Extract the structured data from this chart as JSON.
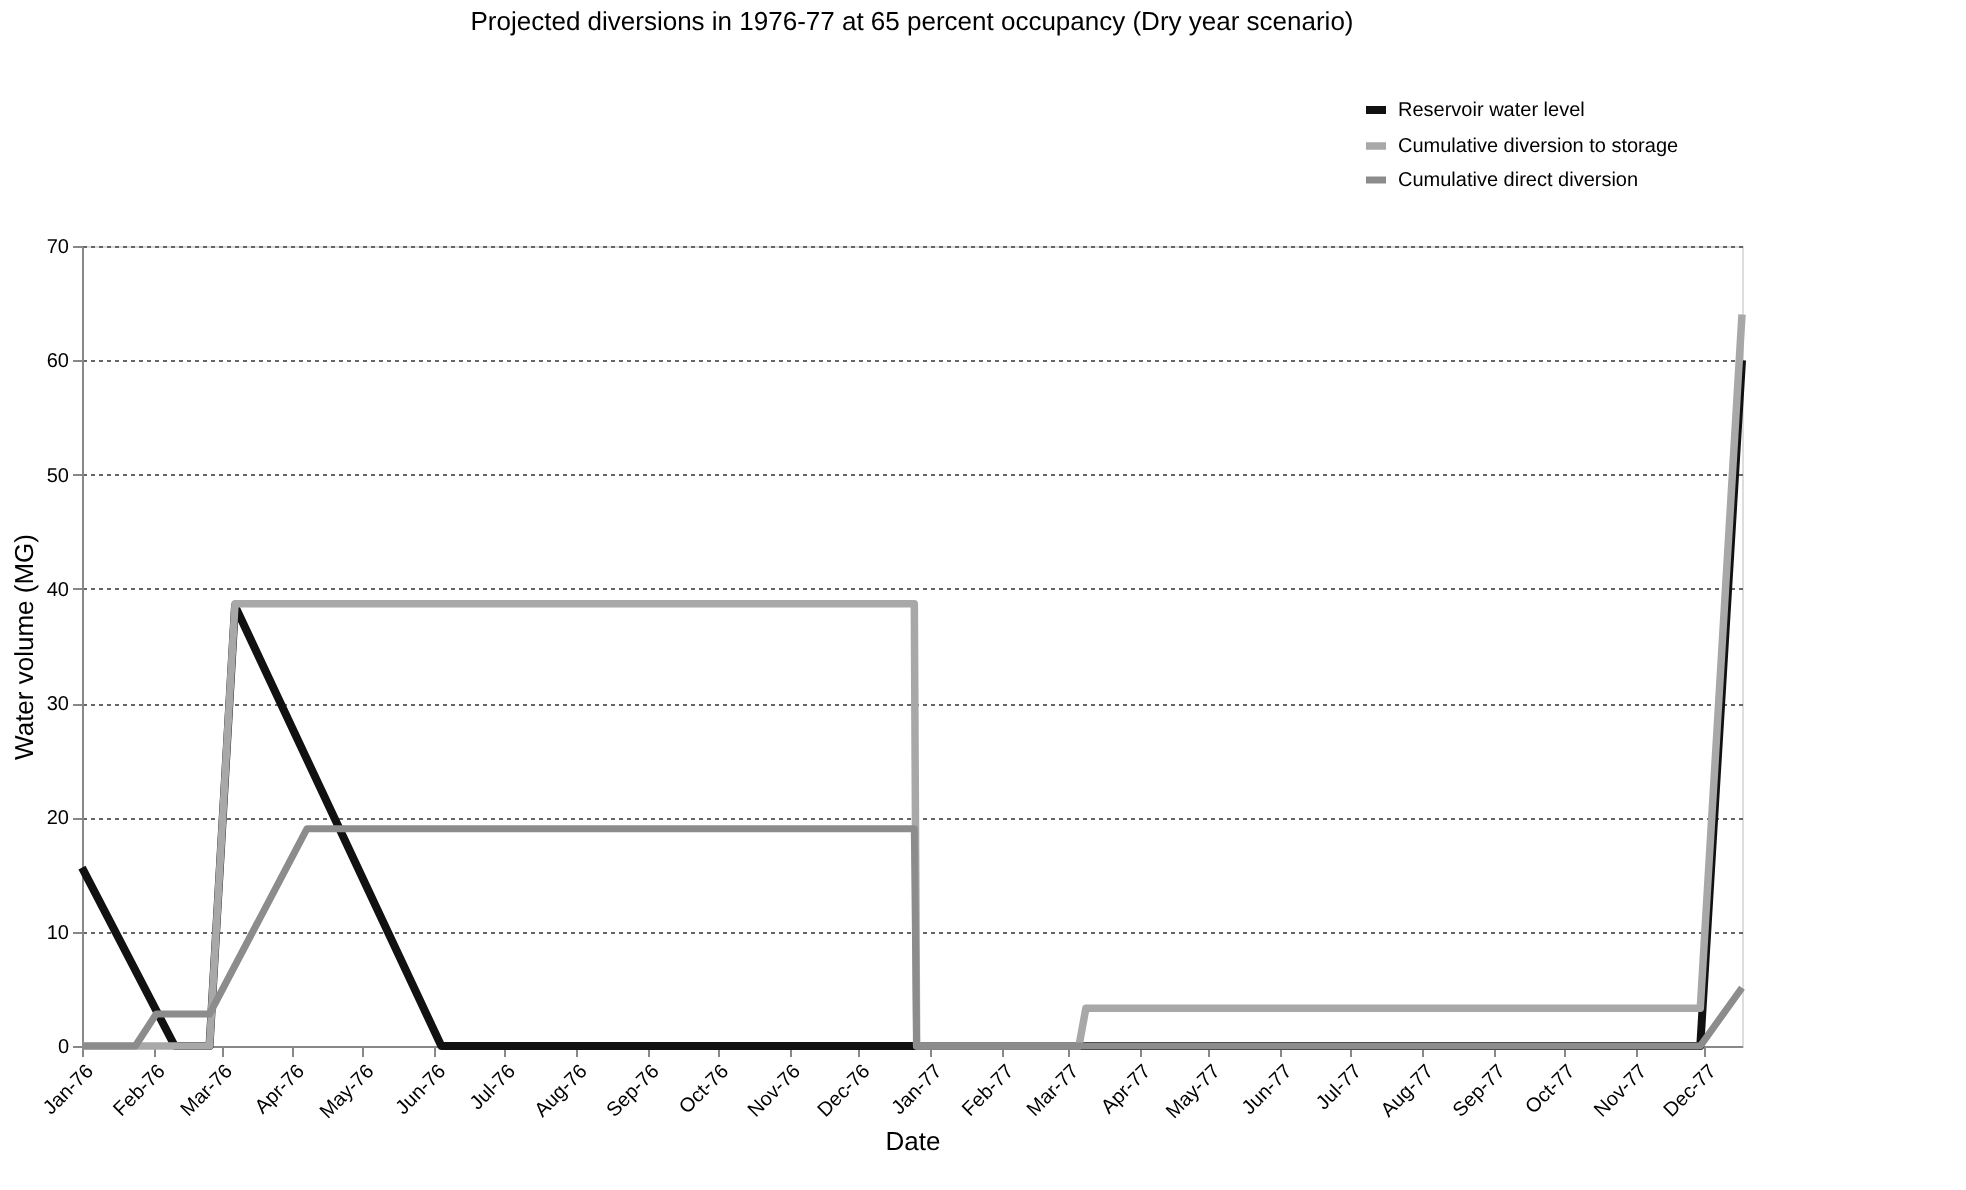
{
  "chart_data": {
    "type": "line",
    "title": "Projected diversions in 1976-77 at 65 percent occupancy (Dry year scenario)",
    "xlabel": "Date",
    "ylabel": "Water volume (MG)",
    "xlim": [
      "1976-01-01",
      "1977-12-17"
    ],
    "xticks": [
      {
        "value": "1976-01-01",
        "label": "Jan-76"
      },
      {
        "value": "1976-02-01",
        "label": "Feb-76"
      },
      {
        "value": "1976-03-01",
        "label": "Mar-76"
      },
      {
        "value": "1976-04-01",
        "label": "Apr-76"
      },
      {
        "value": "1976-05-01",
        "label": "May-76"
      },
      {
        "value": "1976-06-01",
        "label": "Jun-76"
      },
      {
        "value": "1976-07-01",
        "label": "Jul-76"
      },
      {
        "value": "1976-08-01",
        "label": "Aug-76"
      },
      {
        "value": "1976-09-01",
        "label": "Sep-76"
      },
      {
        "value": "1976-10-01",
        "label": "Oct-76"
      },
      {
        "value": "1976-11-01",
        "label": "Nov-76"
      },
      {
        "value": "1976-12-01",
        "label": "Dec-76"
      },
      {
        "value": "1977-01-01",
        "label": "Jan-77"
      },
      {
        "value": "1977-02-01",
        "label": "Feb-77"
      },
      {
        "value": "1977-03-01",
        "label": "Mar-77"
      },
      {
        "value": "1977-04-01",
        "label": "Apr-77"
      },
      {
        "value": "1977-05-01",
        "label": "May-77"
      },
      {
        "value": "1977-06-01",
        "label": "Jun-77"
      },
      {
        "value": "1977-07-01",
        "label": "Jul-77"
      },
      {
        "value": "1977-08-01",
        "label": "Aug-77"
      },
      {
        "value": "1977-09-01",
        "label": "Sep-77"
      },
      {
        "value": "1977-10-01",
        "label": "Oct-77"
      },
      {
        "value": "1977-11-01",
        "label": "Nov-77"
      },
      {
        "value": "1977-12-01",
        "label": "Dec-77"
      }
    ],
    "ylim": [
      0,
      70
    ],
    "yticks": [
      0,
      10,
      20,
      30,
      40,
      50,
      60,
      70
    ],
    "grid": "y",
    "legend": "top right",
    "marker": "none",
    "line_style": "solid",
    "series": [
      {
        "name": "Reservoir water level",
        "color": "#111111",
        "x": [
          "1976-01-01",
          "1976-02-10",
          "1976-02-25",
          "1976-03-07",
          "1976-06-04",
          "1977-11-29",
          "1977-12-17"
        ],
        "values": [
          15.6,
          0,
          0,
          38.5,
          0,
          0,
          60
        ]
      },
      {
        "name": "Cumulative diversion to storage",
        "color": "#a8a8a8",
        "x": [
          "1976-01-01",
          "1976-02-25",
          "1976-03-07",
          "1976-12-25",
          "1976-12-26",
          "1977-03-06",
          "1977-03-09",
          "1977-11-29",
          "1977-12-17"
        ],
        "values": [
          0,
          0,
          38.7,
          38.7,
          0,
          0,
          3.3,
          3.3,
          64
        ]
      },
      {
        "name": "Cumulative direct diversion",
        "color": "#8c8c8c",
        "x": [
          "1976-01-01",
          "1976-01-24",
          "1976-02-02",
          "1976-02-25",
          "1976-04-07",
          "1976-12-25",
          "1976-12-26",
          "1977-11-29",
          "1977-12-17"
        ],
        "values": [
          0,
          0,
          2.8,
          2.8,
          19,
          19,
          0,
          0,
          5.1
        ]
      }
    ]
  }
}
